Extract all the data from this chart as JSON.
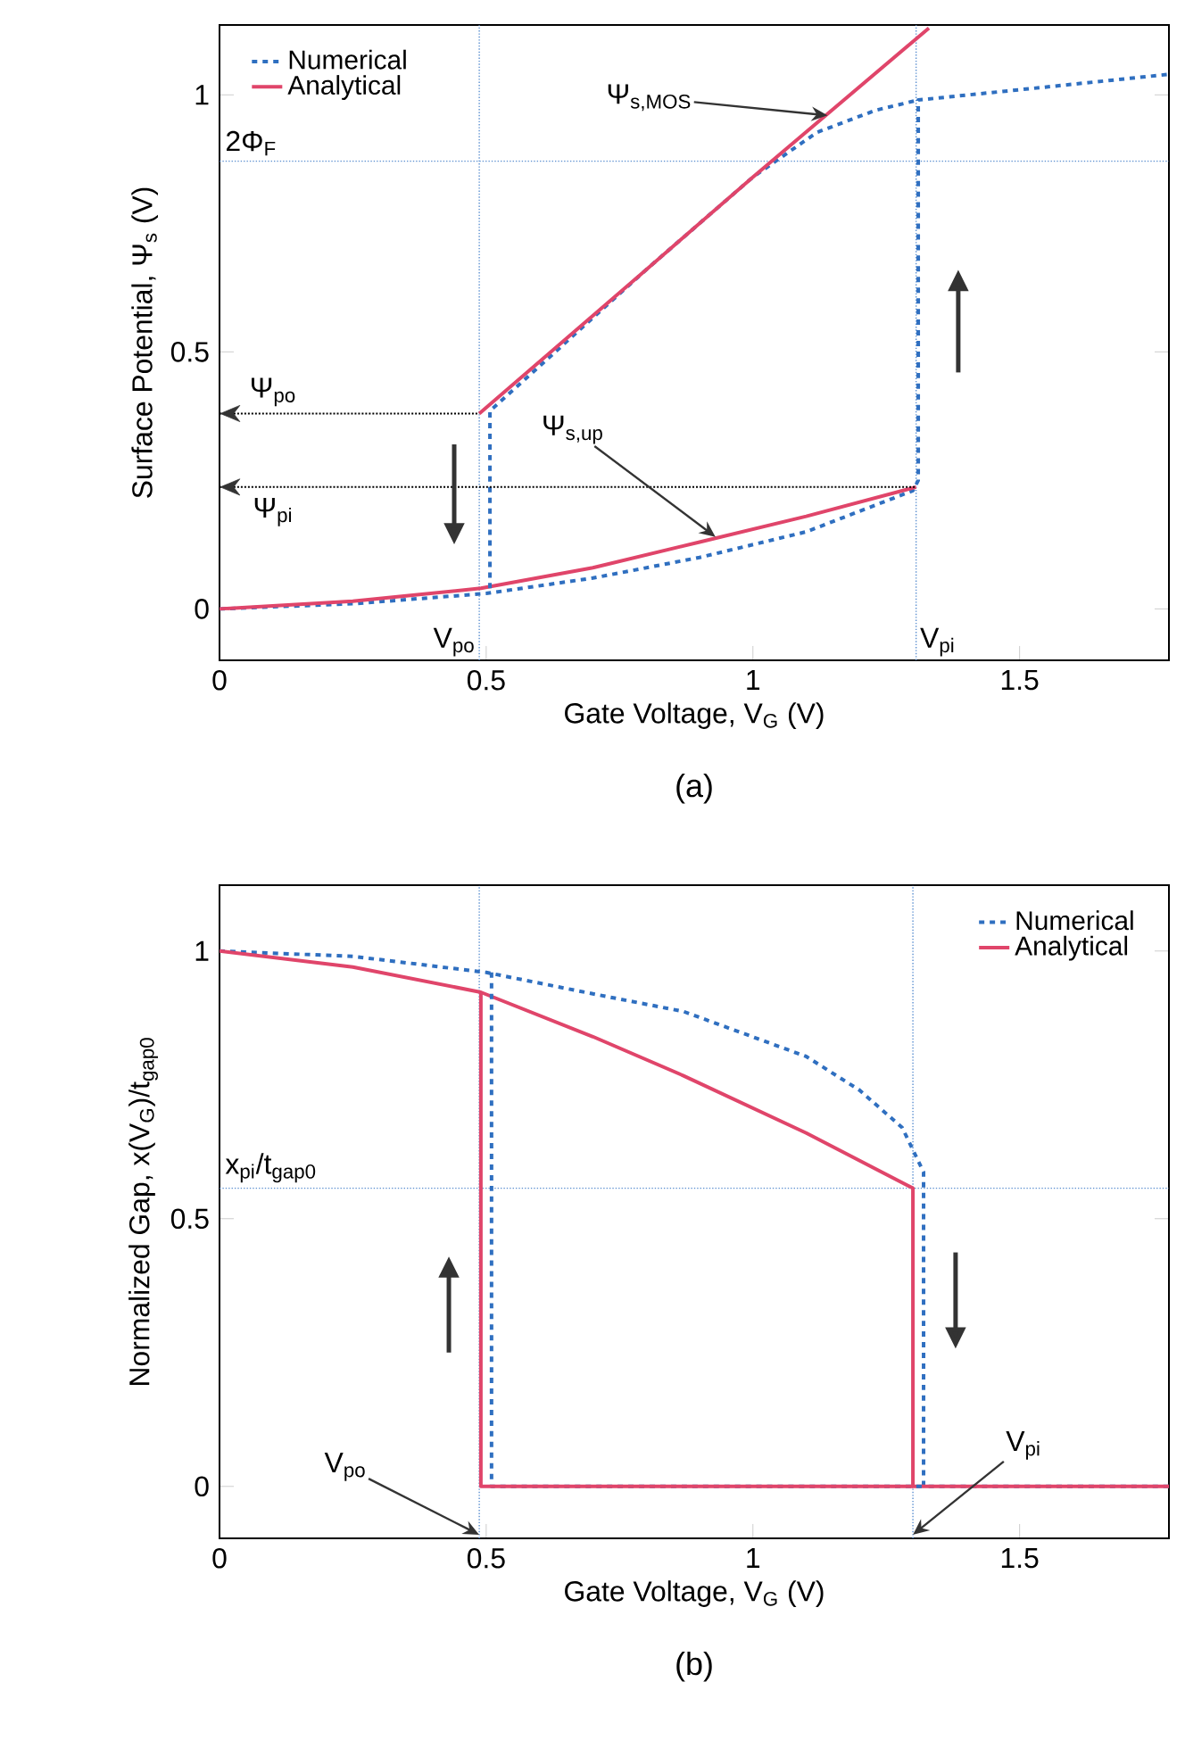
{
  "chart_data": [
    {
      "type": "line",
      "xlabel": "Gate Voltage, V$_{G}$ (V)",
      "ylabel": "Surface Potential, Ψ$_{s}$ (V)",
      "xlim": [
        0,
        1.78
      ],
      "ylim": [
        -0.1,
        1.136
      ],
      "xticks": [
        0,
        0.5,
        1,
        1.5
      ],
      "yticks": [
        0,
        0.5,
        1
      ],
      "legend": "top left",
      "series": [
        {
          "name": "Numerical",
          "color": "#2f6fc0",
          "line_style": "dashed",
          "x": [
            0,
            0.25,
            0.5,
            0.7,
            0.9,
            1.1,
            1.2,
            1.3,
            1.31,
            1.31,
            1.5,
            1.78
          ],
          "values": [
            0,
            0.01,
            0.03,
            0.06,
            0.1,
            0.15,
            0.19,
            0.23,
            0.25,
            0.99,
            1.01,
            1.04
          ]
        },
        {
          "name": "Analytical",
          "color": "#e0456a",
          "line_style": "solid",
          "x": [
            0,
            0.25,
            0.49,
            0.7,
            0.9,
            1.1,
            1.306
          ],
          "values": [
            0,
            0.015,
            0.04,
            0.08,
            0.13,
            0.18,
            0.237
          ]
        },
        {
          "type": "line",
          "color": "#2f6fc0",
          "line_style": "dashed",
          "x": [
            0.507,
            0.507,
            0.8,
            1.0,
            1.12,
            1.23,
            1.31
          ],
          "values": [
            0.04,
            0.385,
            0.66,
            0.84,
            0.927,
            0.97,
            0.99
          ]
        },
        {
          "type": "line",
          "color": "#e0456a",
          "line_style": "solid",
          "x": [
            0.487,
            0.8,
            1.0,
            1.33
          ],
          "values": [
            0.38,
            0.66,
            0.84,
            1.13
          ]
        },
        {
          "type": "line",
          "color": "#000000",
          "line_style": "dotted",
          "x": [
            0,
            0.487
          ],
          "values": [
            0.38,
            0.38
          ]
        },
        {
          "type": "line",
          "color": "#000000",
          "line_style": "dotted",
          "x": [
            0,
            1.306
          ],
          "values": [
            0.237,
            0.237
          ]
        }
      ],
      "ref_lines": [
        {
          "axis": "y",
          "value": 0.871,
          "label": "2Φ$_{F}$",
          "color": "#5b8fd0",
          "line_style": "dotted"
        },
        {
          "axis": "x",
          "value": 0.487,
          "label": "V$_{po}$",
          "color": "#5b8fd0",
          "line_style": "dotted"
        },
        {
          "axis": "x",
          "value": 1.306,
          "label": "V$_{pi}$",
          "color": "#5b8fd0",
          "line_style": "dotted"
        }
      ],
      "annotations": [
        {
          "text": "Ψ$_{s,MOS}$",
          "x": 1.14,
          "y": 0.96
        },
        {
          "text": "Ψ$_{s,up}$",
          "x": 0.93,
          "y": 0.14
        },
        {
          "text": "Ψ$_{po}$",
          "x": 0,
          "y": 0.38
        },
        {
          "text": "Ψ$_{pi}$",
          "x": 0,
          "y": 0.237
        },
        "(a)"
      ]
    },
    {
      "type": "line",
      "xlabel": "Gate Voltage, V$_{G}$ (V)",
      "ylabel": "Normalized Gap,  x(V$_{G}$)/t$_{gap0}$",
      "xlim": [
        0,
        1.78
      ],
      "ylim": [
        -0.097,
        1.123
      ],
      "xticks": [
        0,
        0.5,
        1,
        1.5
      ],
      "yticks": [
        0,
        0.5,
        1
      ],
      "legend": "top right",
      "series": [
        {
          "name": "Numerical",
          "color": "#2f6fc0",
          "line_style": "dashed",
          "x": [
            0,
            0.25,
            0.5,
            0.7,
            0.87,
            1.1,
            1.2,
            1.28,
            1.32,
            1.32,
            1.78
          ],
          "values": [
            1,
            0.99,
            0.96,
            0.92,
            0.887,
            0.803,
            0.74,
            0.67,
            0.587,
            0,
            0
          ]
        },
        {
          "name": "Analytical",
          "color": "#e0456a",
          "line_style": "solid",
          "x": [
            0,
            0.25,
            0.49,
            0.7,
            0.87,
            1.1,
            1.3,
            1.3,
            1.78
          ],
          "values": [
            1,
            0.97,
            0.923,
            0.84,
            0.767,
            0.66,
            0.557,
            0,
            0
          ]
        },
        {
          "type": "line",
          "color": "#2f6fc0",
          "line_style": "dashed",
          "x": [
            0.51,
            0.51,
            1.32
          ],
          "values": [
            0.96,
            0,
            0
          ]
        },
        {
          "type": "line",
          "color": "#e0456a",
          "line_style": "solid",
          "x": [
            0.49,
            0.49,
            1.3
          ],
          "values": [
            0.923,
            0,
            0
          ]
        }
      ],
      "ref_lines": [
        {
          "axis": "y",
          "value": 0.557,
          "label": "x$_{pi}$/t$_{gap0}$",
          "color": "#5b8fd0",
          "line_style": "dotted"
        },
        {
          "axis": "x",
          "value": 0.487,
          "label": "V$_{po}$",
          "color": "#5b8fd0",
          "line_style": "dotted"
        },
        {
          "axis": "x",
          "value": 1.3,
          "label": "V$_{pi}$",
          "color": "#5b8fd0",
          "line_style": "dotted"
        }
      ],
      "annotations": [
        "(b)"
      ]
    }
  ]
}
